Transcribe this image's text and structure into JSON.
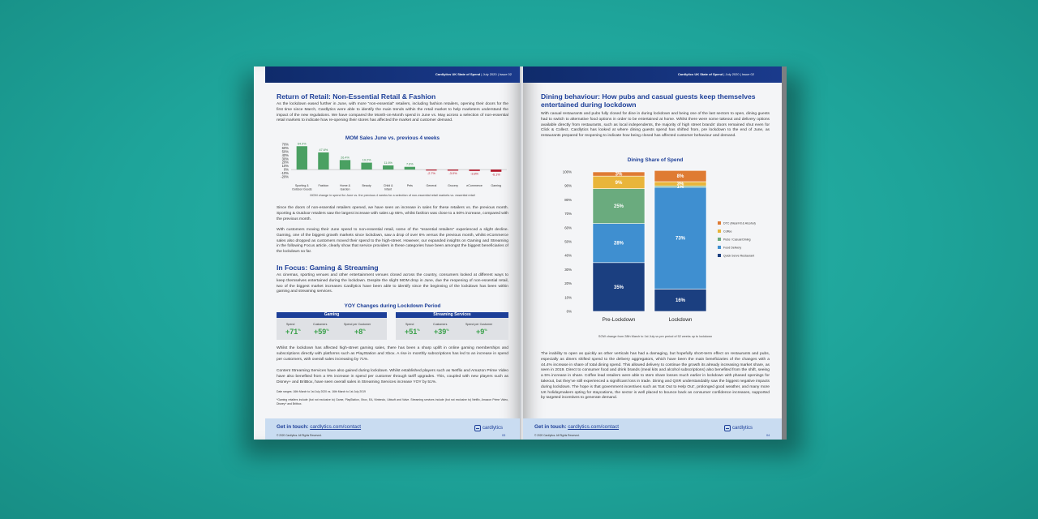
{
  "left_page": {
    "header": {
      "brand": "Cardlytics UK State of Spend",
      "meta": " | July 2020 | Issue 02"
    },
    "section1_title": "Return of Retail: Non-Essential Retail & Fashion",
    "section1_p1": "As the lockdown eased further in June, with more “non-essential” retailers, including fashion retailers, opening their doors for the first time since March, Cardlytics were able to identify the main trends within the retail market to help marketers understand the impact of the new regulations. We have compared the Month-on-Month spend in June vs. May across a selection of non-essential retail markets to indicate how re-opening their stores has affected the market and customer demand.",
    "section1_p2": "Since the doors of non-essential retailers opened, we have seen an increase in sales for these retailers vs. the previous month. Sporting & Outdoor retailers saw the largest increase with sales up 65%, whilst fashion was close to a 50% increase, compared with the previous month.",
    "section1_p3": "With customers moving their June spend to non-essential retail, some of the “essential retailers” experienced a slight decline. Gaming, one of the biggest growth markets since lockdown, saw a drop of over 6% versus the previous month, whilst eCommerce sales also dropped as customers moved their spend to the high-street. However, our expanded insights on Gaming and Streaming in the following Focus article, clearly show that service providers in these categories have been amongst the biggest beneficiaries of the lockdown so far.",
    "section2_title": "In Focus: Gaming & Streaming",
    "section2_p1": "As cinemas, sporting venues and other entertainment venues closed across the country, consumers looked at different ways to keep themselves entertained during the lockdown. Despite the slight MOM drop in June, due the reopening of non-essential retail, two of the biggest market increases Cardlytics have been able to identify since the beginning of the lockdown has been within gaming and streaming services.",
    "yoy_title": "YOY Changes during Lockdown Period",
    "gaming": {
      "title": "Gaming",
      "labels": [
        "Spend",
        "Customers",
        "Spend per Customer"
      ],
      "values": [
        "+71",
        "+59",
        "+8"
      ],
      "unit": "%"
    },
    "streaming": {
      "title": "Streaming Services",
      "labels": [
        "Spend",
        "Customers",
        "Spend per Customer"
      ],
      "values": [
        "+51",
        "+39",
        "+9"
      ],
      "unit": "%"
    },
    "section2_p2": "Whilst the lockdown has affected high-street gaming sales, there has been a sharp uplift in online gaming memberships and subscriptions directly with platforms such as PlayStation and Xbox. A rise in monthly subscriptions has led to an increase in spend per customers, with overall sales increasing by 71%.",
    "section2_p3": "Content Streaming Services have also gained during lockdown. Whilst established players such as Netflix and Amazon Prime Video have also benefited from a 9% increase in spend per customer through tariff upgrades. This, coupled with new players such as Disney+ and BritBox, have seen overall sales in Streaming Services increase YOY by 51%.",
    "footnote1": "Date ranges: 16th March to 1st July 2020 vs. 16th March to 1st July 2019",
    "footnote2": "*Gaming retailers include (but not exclusive to) Game, PlayStation, Xbox, EA, Nintendo, Ubisoft and Valve. Streaming services include (but not exclusive to) Netflix, Amazon Prime Video, Disney+ and Britbox.",
    "footer": {
      "contact_label": "Get in touch:",
      "contact_link": "cardlytics.com/contact",
      "copyright": "© 2020 Cardlytics. All Rights Reserved.",
      "logo": "cardlytics",
      "page": "03"
    }
  },
  "right_page": {
    "header": {
      "brand": "Cardlytics UK State of Spend",
      "meta": " | July 2020 | Issue 02"
    },
    "title": "Dining behaviour: How pubs and casual guests keep themselves entertained during lockdown",
    "p1": "With casual restaurants and pubs fully closed for dine in during lockdown and being one of the last sectors to open, dining guests had to switch to alternative food options in order to be entertained at home. Whilst there were some takeout and delivery options available directly from restaurants, such as local independents, the majority of high street brands’ doors remained shut even for Click & Collect. Cardlytics has looked at where dining guests spend has shifted from, pre lockdown to the end of June, as restaurants prepared for reopening to indicate how being closed has affected customer behaviour and demand.",
    "chart_note": "SOW change from 28th March to 1st July vs pre period of 52 weeks up to lockdown",
    "p2": "The inability to open as quickly as other verticals has had a damaging, but hopefully short-term effect on restaurants and pubs, especially as diners shifted spend to the delivery aggregators, which have been the main beneficiaries of the changes with a 44.4% increase in share of total dining spend. This allowed delivery to continue the growth its already increasing market share, as seen in 2019. Direct to consumer food and drink brands (meal kits and alcohol subscriptions) also benefited from the shift, seeing a 5% increase in share. Coffee lead retailers were able to stem share losses much earlier in lockdown with phased openings for takeout, but they’ve still experienced a significant loss in trade. Dining and QSR understandably saw the biggest negative impacts during lockdown. The hope is that government incentives such as ‘Eat Out to Help Out’, prolonged good weather, and many more UK holidaymakers opting for staycations, the sector is well placed to bounce back as consumer confidence increases, supported by targeted incentives to generate demand.",
    "footer": {
      "contact_label": "Get in touch:",
      "contact_link": "cardlytics.com/contact",
      "copyright": "© 2020 Cardlytics. All Rights Reserved.",
      "logo": "cardlytics",
      "page": "04"
    }
  },
  "chart_data": [
    {
      "type": "bar",
      "title": "MOM Sales June vs. previous 4 weeks",
      "categories": [
        "Sporting & Outdoor Goods",
        "Fashion",
        "Home & Garden",
        "Beauty",
        "Child & Infant",
        "Pets",
        "General",
        "Grocery",
        "eCommerce",
        "Gaming"
      ],
      "values": [
        64.9,
        47.6,
        26.4,
        19.2,
        11.6,
        7.6,
        -2.7,
        -3.0,
        -3.8,
        -6.1
      ],
      "data_labels": [
        "64.9%",
        "47.6%",
        "26.4%",
        "19.2%",
        "11.6%",
        "7.6%",
        "-2.7%",
        "-3.0%",
        "-3.8%",
        "-6.1%"
      ],
      "y_ticks": [
        "70%",
        "60%",
        "50%",
        "40%",
        "30%",
        "20%",
        "10%",
        "0%",
        "-10%",
        "-20%"
      ],
      "ylim": [
        -20,
        70
      ],
      "caption": "MOM change in spend for June vs. the previous 4 weeks for a selection of non-essential retail markets vs. essential retail",
      "colors": {
        "positive": "#4aa062",
        "negative": "#b4192b"
      }
    },
    {
      "type": "bar",
      "stacked": true,
      "title": "Dining Share of Spend",
      "categories": [
        "Pre-Lockdown",
        "Lockdown"
      ],
      "y_ticks": [
        "100%",
        "90%",
        "80%",
        "70%",
        "60%",
        "50%",
        "40%",
        "30%",
        "20%",
        "10%",
        "0%"
      ],
      "ylim": [
        0,
        100
      ],
      "series": [
        {
          "name": "Quick Serve Restaurant",
          "color": "#1b3f80",
          "values": [
            35,
            16
          ],
          "labels": [
            "35%",
            "16%"
          ]
        },
        {
          "name": "Food Delivery",
          "color": "#3f8fd0",
          "values": [
            28,
            73
          ],
          "labels": [
            "28%",
            "73%"
          ]
        },
        {
          "name": "Pubs / Casual Dining",
          "color": "#6aab7e",
          "values": [
            25,
            1
          ],
          "labels": [
            "25%",
            "1%"
          ]
        },
        {
          "name": "Coffee",
          "color": "#e9b53a",
          "values": [
            9,
            3
          ],
          "labels": [
            "9%",
            "3%"
          ]
        },
        {
          "name": "DTC (Meal Kit & Alcohol)",
          "color": "#df7b33",
          "values": [
            3,
            8
          ],
          "labels": [
            "3%",
            "8%"
          ]
        }
      ],
      "legend": "right"
    }
  ]
}
